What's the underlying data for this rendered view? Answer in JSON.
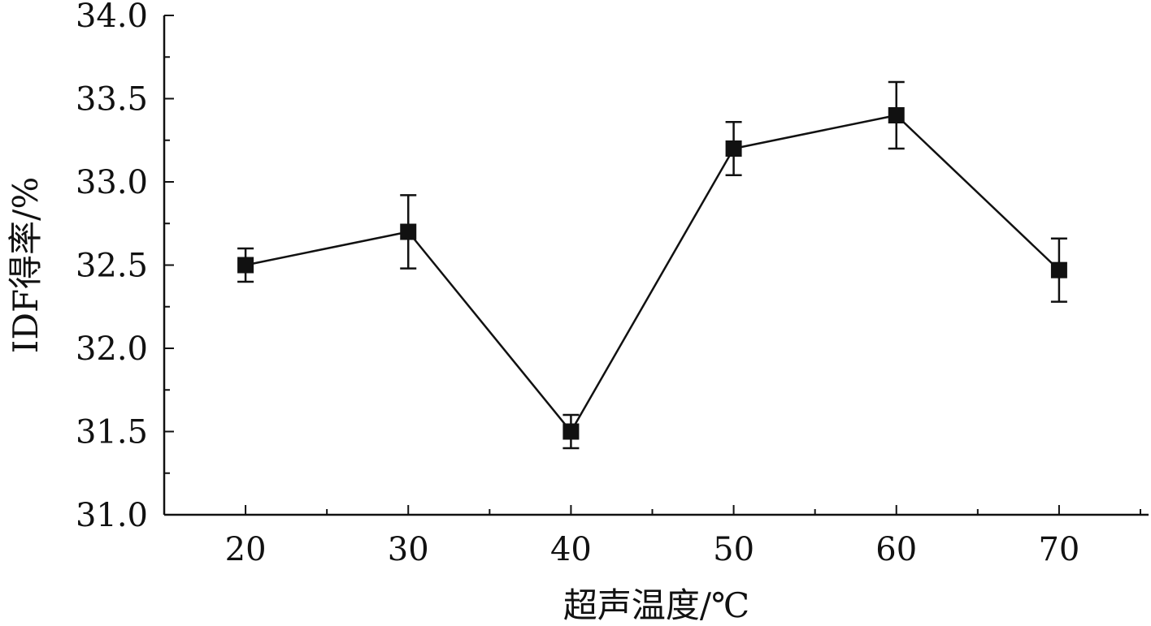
{
  "chart_data": {
    "type": "line",
    "title": "",
    "xlabel": "超声温度/℃",
    "ylabel": "IDF得率/%",
    "x": [
      20,
      30,
      40,
      50,
      60,
      70
    ],
    "x_tick_labels": [
      "20",
      "30",
      "40",
      "50",
      "60",
      "70"
    ],
    "xlim": [
      15,
      75.5
    ],
    "ylim": [
      31.0,
      34.0
    ],
    "y_tick_labels": [
      "31.0",
      "31.5",
      "32.0",
      "32.5",
      "33.0",
      "33.5",
      "34.0"
    ],
    "y_ticks": [
      31.0,
      31.5,
      32.0,
      32.5,
      33.0,
      33.5,
      34.0
    ],
    "series": [
      {
        "values": [
          32.5,
          32.7,
          31.5,
          33.2,
          33.4,
          32.47
        ],
        "error": [
          0.1,
          0.22,
          0.1,
          0.16,
          0.2,
          0.19
        ],
        "color": "#111111",
        "marker": "square"
      }
    ],
    "grid": false,
    "legend": "none"
  }
}
